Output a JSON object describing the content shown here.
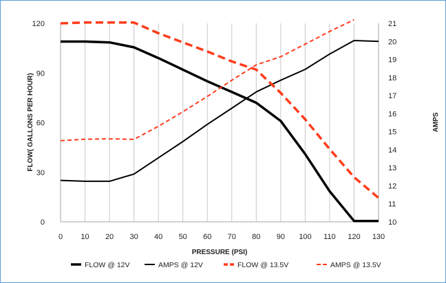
{
  "chart_data": {
    "type": "line",
    "xlabel": "PRESSURE (PSI)",
    "ylabel": "FLOW( GALLONS PER HOUR)",
    "y2label": "AMPS",
    "x": [
      0,
      10,
      20,
      30,
      40,
      50,
      60,
      70,
      80,
      90,
      100,
      110,
      120,
      130
    ],
    "xlim": [
      0,
      130
    ],
    "ylim": [
      0,
      120
    ],
    "y2lim": [
      10,
      21
    ],
    "xticks": [
      "0",
      "10",
      "20",
      "30",
      "40",
      "50",
      "60",
      "70",
      "80",
      "90",
      "100",
      "110",
      "120",
      "130"
    ],
    "yticks": [
      "0",
      "30",
      "60",
      "90",
      "120"
    ],
    "y2ticks": [
      "10",
      "11",
      "12",
      "13",
      "14",
      "15",
      "16",
      "17",
      "18",
      "19",
      "20",
      "21"
    ],
    "grid": "vertical",
    "legend_position": "bottom",
    "series": [
      {
        "name": "FLOW @ 12V",
        "axis": "left",
        "color": "#000000",
        "style": "solid-thick",
        "values": [
          109,
          109,
          108.5,
          105.5,
          99,
          92,
          85,
          78.5,
          72,
          61,
          41,
          18.5,
          0.5,
          0.5
        ]
      },
      {
        "name": "AMPS @ 12V",
        "axis": "right",
        "color": "#000000",
        "style": "solid-thin",
        "values": [
          12.3,
          12.25,
          12.25,
          12.65,
          13.55,
          14.45,
          15.4,
          16.3,
          17.2,
          17.85,
          18.45,
          19.3,
          20.05,
          20.0
        ]
      },
      {
        "name": "FLOW @ 13.5V",
        "axis": "left",
        "color": "#ff3b1a",
        "style": "dashed-thick",
        "values": [
          120,
          120.5,
          120.5,
          120.5,
          114,
          108.5,
          103,
          97,
          92,
          78,
          62,
          44,
          27,
          14.5
        ]
      },
      {
        "name": "AMPS @ 13.5V",
        "axis": "right",
        "color": "#ff3b1a",
        "style": "dashed-thin",
        "values": [
          14.5,
          14.58,
          14.6,
          14.57,
          15.3,
          16.1,
          16.95,
          17.85,
          18.7,
          19.15,
          19.85,
          20.55,
          21.2,
          null
        ]
      }
    ]
  }
}
